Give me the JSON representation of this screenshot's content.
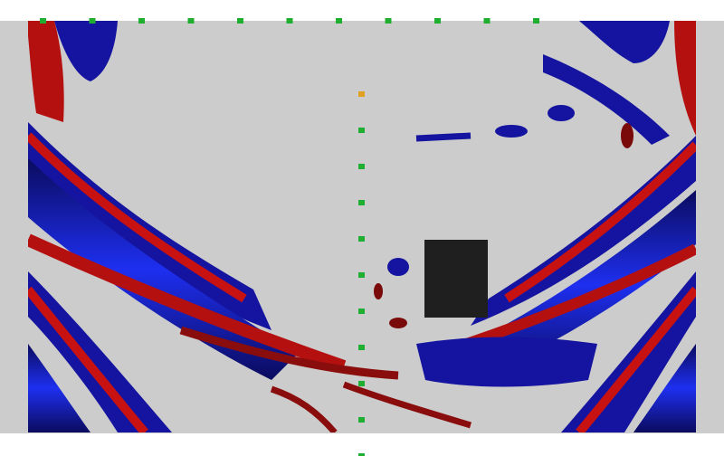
{
  "image": {
    "kind": "seismic wavefield snapshot (simulation render)",
    "colors": {
      "page_background": "#ffffff",
      "frame_background": "#cccccc",
      "positive_amplitude": "#c81212",
      "positive_amplitude_dark": "#7a0a0a",
      "negative_amplitude": "#1414a0",
      "negative_amplitude_bright": "#1e2ff0",
      "negative_amplitude_dark": "#0b0b5e",
      "obstacle": "#1f1f1f",
      "receiver_marker": "#1fae2f",
      "source_marker": "#e0a020"
    },
    "markers": {
      "surface_receiver_count": 11,
      "borehole_receiver_count": 11,
      "source_count": 1
    }
  }
}
